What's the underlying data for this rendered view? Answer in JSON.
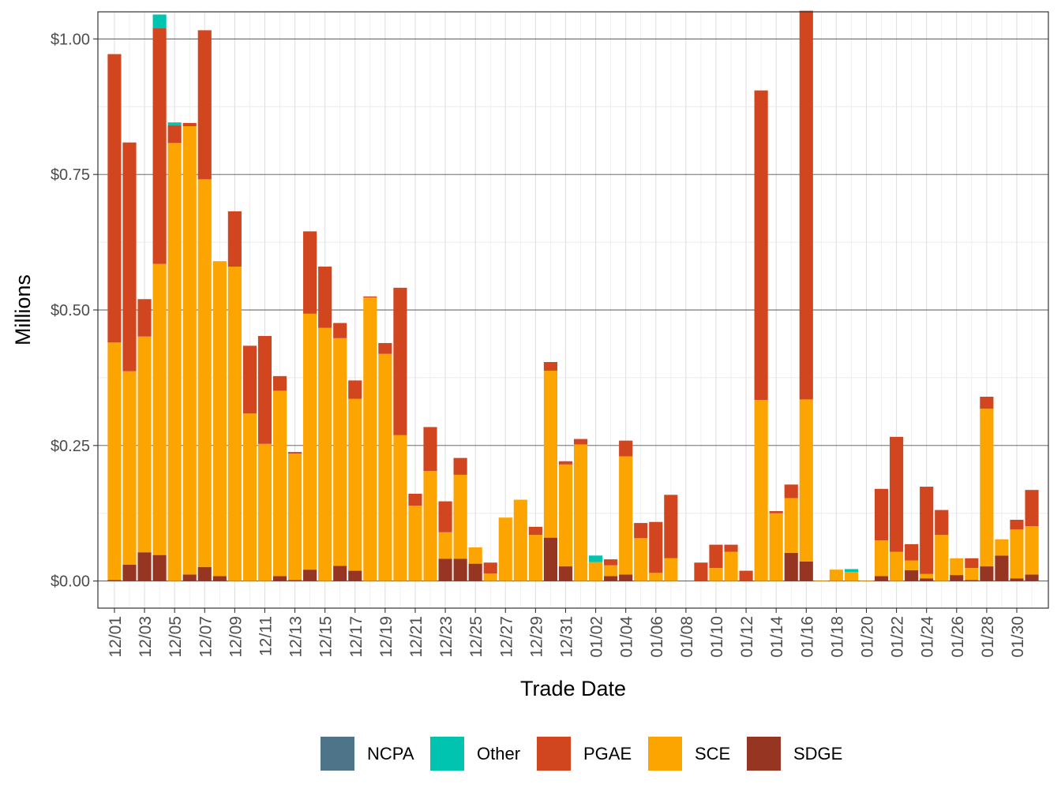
{
  "chart_data": {
    "type": "bar",
    "stacked": true,
    "title": "",
    "xlabel": "Trade Date",
    "ylabel": "Millions",
    "ylim": [
      -0.05,
      1.05
    ],
    "y_ticks": [
      0,
      0.25,
      0.5,
      0.75,
      1.0
    ],
    "y_tick_labels": [
      "$0.00",
      "$0.25",
      "$0.50",
      "$0.75",
      "$1.00"
    ],
    "x_tick_labels": [
      "12/01",
      "12/03",
      "12/05",
      "12/07",
      "12/09",
      "12/11",
      "12/13",
      "12/15",
      "12/17",
      "12/19",
      "12/21",
      "12/23",
      "12/25",
      "12/27",
      "12/29",
      "12/31",
      "01/02",
      "01/04",
      "01/06",
      "01/08",
      "01/10",
      "01/12",
      "01/14",
      "01/16",
      "01/18",
      "01/20",
      "01/22",
      "01/24",
      "01/26",
      "01/28",
      "01/30"
    ],
    "grid": true,
    "legend": {
      "position": "bottom",
      "entries": [
        "NCPA",
        "Other",
        "PGAE",
        "SCE",
        "SDGE"
      ]
    },
    "colors": {
      "NCPA": "#4E7489",
      "Other": "#00C4B0",
      "PGAE": "#D1461F",
      "SCE": "#FCA400",
      "SDGE": "#963622"
    },
    "categories": [
      "12/01",
      "12/02",
      "12/03",
      "12/04",
      "12/05",
      "12/06",
      "12/07",
      "12/08",
      "12/09",
      "12/10",
      "12/11",
      "12/12",
      "12/13",
      "12/14",
      "12/15",
      "12/16",
      "12/17",
      "12/18",
      "12/19",
      "12/20",
      "12/21",
      "12/22",
      "12/23",
      "12/24",
      "12/25",
      "12/26",
      "12/27",
      "12/28",
      "12/29",
      "12/30",
      "12/31",
      "01/01",
      "01/02",
      "01/03",
      "01/04",
      "01/05",
      "01/06",
      "01/07",
      "01/08",
      "01/09",
      "01/10",
      "01/11",
      "01/12",
      "01/13",
      "01/14",
      "01/15",
      "01/16",
      "01/17",
      "01/18",
      "01/19",
      "01/20",
      "01/21",
      "01/22",
      "01/23",
      "01/24",
      "01/25",
      "01/26",
      "01/27",
      "01/28",
      "01/29",
      "01/30",
      "01/31"
    ],
    "series": [
      {
        "name": "SDGE",
        "values": [
          0.002,
          0.03,
          0.053,
          0.048,
          0,
          0.012,
          0.026,
          0.009,
          0,
          0,
          0,
          0.009,
          0.002,
          0.021,
          0,
          0.028,
          0.019,
          0,
          0,
          0,
          0,
          0,
          0.041,
          0.041,
          0.032,
          0,
          0,
          0,
          0,
          0.08,
          0.027,
          0,
          0,
          0.009,
          0.012,
          0,
          0,
          0,
          0,
          0,
          0,
          0,
          0,
          0,
          0,
          0.052,
          0.036,
          0,
          0,
          0,
          0,
          0.009,
          0,
          0.02,
          0.005,
          0,
          0.011,
          0.002,
          0.027,
          0.047,
          0.005,
          0.012
        ]
      },
      {
        "name": "SCE",
        "values": [
          0.438,
          0.357,
          0.398,
          0.537,
          0.808,
          0.827,
          0.715,
          0.581,
          0.58,
          0.309,
          0.253,
          0.342,
          0.233,
          0.472,
          0.467,
          0.42,
          0.317,
          0.523,
          0.419,
          0.269,
          0.139,
          0.203,
          0.049,
          0.155,
          0.03,
          0.014,
          0.117,
          0.15,
          0.085,
          0.308,
          0.188,
          0.252,
          0.035,
          0.02,
          0.218,
          0.079,
          0.015,
          0.042,
          0,
          0,
          0.024,
          0.054,
          0,
          0.334,
          0.125,
          0.101,
          0.299,
          0.001,
          0.021,
          0.017,
          0.001,
          0.066,
          0.054,
          0.018,
          0.008,
          0.085,
          0.031,
          0.022,
          0.291,
          0.03,
          0.09,
          0.089
        ]
      },
      {
        "name": "PGAE",
        "values": [
          0.532,
          0.422,
          0.069,
          0.435,
          0.033,
          0.006,
          0.275,
          0,
          0.102,
          0.125,
          0.199,
          0.027,
          0.003,
          0.152,
          0.113,
          0.028,
          0.034,
          0.002,
          0.02,
          0.272,
          0.022,
          0.081,
          0.057,
          0.031,
          0,
          0.02,
          0,
          0,
          0.015,
          0.016,
          0.006,
          0.01,
          0,
          0.011,
          0.029,
          0.028,
          0.094,
          0.117,
          0,
          0.034,
          0.043,
          0.013,
          0.019,
          0.571,
          0.004,
          0.025,
          0.717,
          0,
          0,
          0,
          0,
          0.095,
          0.212,
          0.03,
          0.161,
          0.046,
          0,
          0.018,
          0.022,
          0,
          0.018,
          0.067
        ]
      },
      {
        "name": "Other",
        "values": [
          0,
          0,
          0,
          0.025,
          0.005,
          0,
          0,
          0,
          0,
          0,
          0,
          0,
          0,
          0,
          0,
          0,
          0,
          0,
          0,
          0,
          0,
          0,
          0,
          0,
          0,
          0,
          0,
          0,
          0,
          0,
          0,
          0,
          0.012,
          0,
          0,
          0,
          0,
          0,
          0,
          0,
          0,
          0,
          0,
          0,
          0,
          0,
          0,
          0,
          0,
          0.005,
          0,
          0,
          0,
          0,
          0,
          0,
          0,
          0,
          0,
          0,
          0,
          0
        ]
      },
      {
        "name": "NCPA",
        "values": [
          0,
          0,
          0,
          0,
          0,
          0,
          0,
          0,
          0,
          0,
          0,
          0,
          0,
          0,
          0,
          0,
          0,
          0,
          0,
          0,
          0,
          0,
          0,
          0,
          0,
          0,
          0,
          0,
          0,
          0,
          0,
          0,
          0,
          0,
          0,
          0,
          0,
          0,
          0,
          0,
          0,
          0,
          0,
          0,
          0,
          0,
          0,
          0,
          0,
          0,
          0,
          0,
          0,
          0,
          0,
          0,
          0,
          0,
          0,
          0,
          0,
          0
        ]
      }
    ]
  }
}
